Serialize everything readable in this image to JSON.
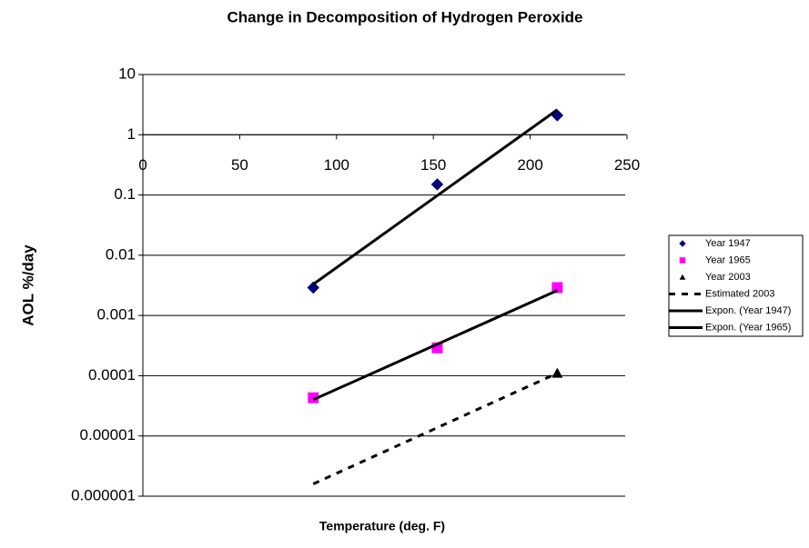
{
  "chart_data": {
    "type": "scatter",
    "title": "Change in Decomposition of Hydrogen Peroxide",
    "x_label": "Temperature (deg. F)",
    "y_label": "AOL %/day",
    "xlim": [
      0,
      250
    ],
    "xticks": [
      0,
      50,
      100,
      150,
      200,
      250
    ],
    "ylim": [
      1e-06,
      10
    ],
    "yticks": [
      10,
      1,
      0.1,
      0.01,
      0.001,
      0.0001,
      1e-05,
      1e-06
    ],
    "log_y": true,
    "grid": true,
    "x_axis_crosses": 1,
    "legend": "right",
    "series": [
      {
        "name": "Year 1947",
        "color": "#000080",
        "marker": "diamond",
        "line": null,
        "x": [
          88,
          152,
          214
        ],
        "values": [
          0.0029,
          0.15,
          2.1
        ]
      },
      {
        "name": "Year 1965",
        "color": "#ff00ff",
        "marker": "square",
        "line": null,
        "x": [
          88,
          152,
          214
        ],
        "values": [
          4.3e-05,
          0.00029,
          0.0029
        ]
      },
      {
        "name": "Year 2003",
        "color": "#000000",
        "marker": "triangle",
        "line": null,
        "x": [
          214
        ],
        "values": [
          0.00011
        ]
      },
      {
        "name": "Estimated 2003",
        "color": "#000000",
        "marker": null,
        "line": "dashed",
        "x": [
          88,
          214
        ],
        "values": [
          1.6e-06,
          0.00011
        ]
      },
      {
        "name": "Expon. (Year 1947)",
        "color": "#000000",
        "marker": null,
        "line": "solid",
        "x": [
          88,
          214
        ],
        "values": [
          0.0033,
          2.6
        ]
      },
      {
        "name": "Expon. (Year 1965)",
        "color": "#000000",
        "marker": null,
        "line": "solid",
        "x": [
          88,
          214
        ],
        "values": [
          4e-05,
          0.0026
        ]
      }
    ]
  }
}
